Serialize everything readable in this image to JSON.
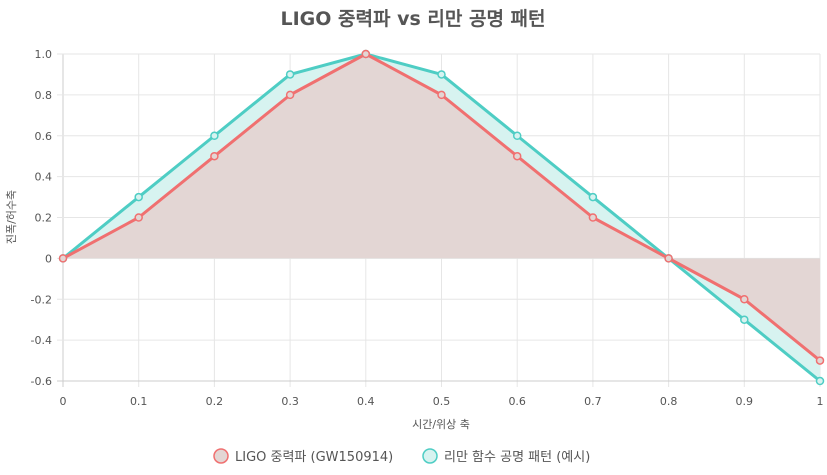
{
  "chart_data": {
    "type": "line",
    "title": "LIGO 중력파 vs 리만 공명 패턴",
    "xlabel": "시간/위상 축",
    "ylabel": "진폭/허수축",
    "x": [
      0,
      0.1,
      0.2,
      0.3,
      0.4,
      0.5,
      0.6,
      0.7,
      0.8,
      0.9,
      1
    ],
    "x_tick_labels": [
      "0",
      "0.1",
      "0.2",
      "0.3",
      "0.4",
      "0.5",
      "0.6",
      "0.7",
      "0.8",
      "0.9",
      "1"
    ],
    "y_tick_labels": [
      "1.0",
      "0.8",
      "0.6",
      "0.4",
      "0.2",
      "0",
      "-0.2",
      "-0.4",
      "-0.6"
    ],
    "xlim": [
      0,
      1
    ],
    "ylim": [
      -0.6,
      1.0
    ],
    "grid": true,
    "legend_position": "bottom",
    "series": [
      {
        "name": "LIGO 중력파 (GW150914)",
        "values": [
          0,
          0.2,
          0.5,
          0.8,
          1.0,
          0.8,
          0.5,
          0.2,
          0,
          -0.2,
          -0.5
        ],
        "color": "#f07070",
        "fill": "#e3d6d4"
      },
      {
        "name": "리만 함수 공명 패턴 (예시)",
        "values": [
          0,
          0.3,
          0.6,
          0.9,
          1.0,
          0.9,
          0.6,
          0.3,
          0,
          -0.3,
          -0.6
        ],
        "color": "#4ecdc4",
        "fill": "#d7f3f0"
      }
    ]
  }
}
